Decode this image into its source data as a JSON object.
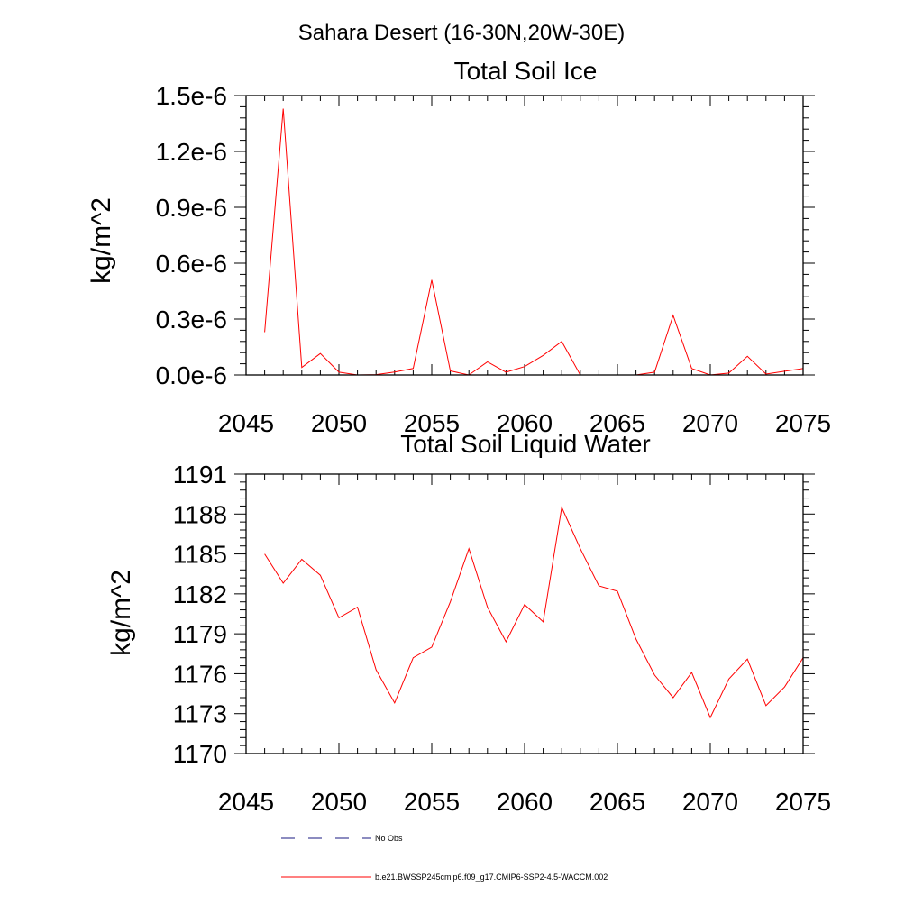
{
  "figure": {
    "title": "Sahara Desert (16-30N,20W-30E)"
  },
  "legend": {
    "entries": [
      {
        "label": "No Obs",
        "style": "dashed",
        "color": "#1a1a80"
      },
      {
        "label": "b.e21.BWSSP245cmip6.f09_g17.CMIP6-SSP2-4.5-WACCM.002",
        "style": "solid",
        "color": "#ff0000"
      }
    ]
  },
  "chart_data": [
    {
      "type": "line",
      "title": "Total Soil Ice",
      "xlabel": "",
      "ylabel": "kg/m^2",
      "xlim": [
        2045,
        2075
      ],
      "ylim": [
        0,
        1.5e-06
      ],
      "xticks": [
        2045,
        2050,
        2055,
        2060,
        2065,
        2070,
        2075
      ],
      "xtick_labels": [
        "2045",
        "2050",
        "2055",
        "2060",
        "2065",
        "2070",
        "2075"
      ],
      "yticks": [
        0,
        3e-07,
        6e-07,
        9e-07,
        1.2e-06,
        1.5e-06
      ],
      "ytick_labels": [
        "0.0e-6",
        "0.3e-6",
        "0.6e-6",
        "0.9e-6",
        "1.2e-6",
        "1.5e-6"
      ],
      "grid": false,
      "series": [
        {
          "color": "#ff0000",
          "x": [
            2046,
            2047,
            2048,
            2049,
            2050,
            2051,
            2052,
            2053,
            2054,
            2055,
            2056,
            2057,
            2058,
            2059,
            2060,
            2061,
            2062,
            2063,
            2064,
            2065,
            2066,
            2067,
            2068,
            2069,
            2070,
            2071,
            2072,
            2073,
            2074,
            2075
          ],
          "values": [
            2.3e-07,
            1.43e-06,
            4e-08,
            1.15e-07,
            1.5e-08,
            0,
            2e-09,
            1.6e-08,
            3.5e-08,
            5.1e-07,
            2.2e-08,
            0,
            7e-08,
            1.5e-08,
            4.5e-08,
            1.05e-07,
            1.8e-07,
            0,
            0,
            0,
            0,
            1.5e-08,
            3.2e-07,
            3.5e-08,
            0,
            1e-08,
            1e-07,
            5e-09,
            2e-08,
            3.5e-08
          ]
        }
      ]
    },
    {
      "type": "line",
      "title": "Total Soil Liquid Water",
      "xlabel": "",
      "ylabel": "kg/m^2",
      "xlim": [
        2045,
        2075
      ],
      "ylim": [
        1170,
        1191
      ],
      "xticks": [
        2045,
        2050,
        2055,
        2060,
        2065,
        2070,
        2075
      ],
      "xtick_labels": [
        "2045",
        "2050",
        "2055",
        "2060",
        "2065",
        "2070",
        "2075"
      ],
      "yticks": [
        1170,
        1173,
        1176,
        1179,
        1182,
        1185,
        1188,
        1191
      ],
      "ytick_labels": [
        "1170",
        "1173",
        "1176",
        "1179",
        "1182",
        "1185",
        "1188",
        "1191"
      ],
      "grid": false,
      "series": [
        {
          "color": "#ff0000",
          "x": [
            2046,
            2047,
            2048,
            2049,
            2050,
            2051,
            2052,
            2053,
            2054,
            2055,
            2056,
            2057,
            2058,
            2059,
            2060,
            2061,
            2062,
            2063,
            2064,
            2065,
            2066,
            2067,
            2068,
            2069,
            2070,
            2071,
            2072,
            2073,
            2074,
            2075
          ],
          "values": [
            1185.0,
            1182.8,
            1184.6,
            1183.4,
            1180.2,
            1181.0,
            1176.3,
            1173.8,
            1177.2,
            1178.0,
            1181.4,
            1185.4,
            1181.0,
            1178.4,
            1181.2,
            1179.9,
            1188.5,
            1185.4,
            1182.6,
            1182.2,
            1178.6,
            1175.9,
            1174.2,
            1176.1,
            1172.7,
            1175.6,
            1177.1,
            1173.6,
            1175.0,
            1177.2
          ]
        }
      ]
    }
  ]
}
